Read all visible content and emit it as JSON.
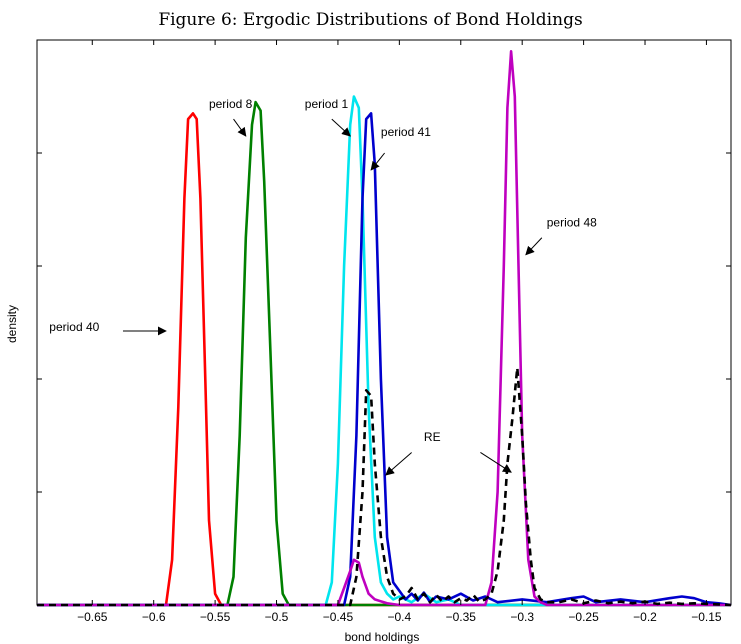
{
  "chart_data": {
    "type": "line",
    "title": "Figure 6: Ergodic Distributions of Bond Holdings",
    "xlabel": "bond holdings",
    "ylabel": "density",
    "xlim": [
      -0.695,
      -0.13
    ],
    "ylim": [
      0,
      1.0
    ],
    "xticks": [
      -0.65,
      -0.6,
      -0.55,
      -0.5,
      -0.45,
      -0.4,
      -0.35,
      -0.3,
      -0.25,
      -0.2,
      -0.15
    ],
    "xtick_labels": [
      "−0.65",
      "−0.6",
      "−0.55",
      "−0.5",
      "−0.45",
      "−0.4",
      "−0.35",
      "−0.3",
      "−0.25",
      "−0.2",
      "−0.15"
    ],
    "yticks": [
      0.2,
      0.4,
      0.6,
      0.8,
      1.0
    ],
    "ytick_labels_shown": false,
    "grid": false,
    "series": [
      {
        "name": "period 40",
        "color": "#ff0000",
        "dash": false,
        "x": [
          -0.695,
          -0.59,
          -0.585,
          -0.58,
          -0.575,
          -0.572,
          -0.568,
          -0.565,
          -0.562,
          -0.558,
          -0.555,
          -0.55,
          -0.545,
          -0.13
        ],
        "y": [
          0,
          0,
          0.08,
          0.35,
          0.72,
          0.86,
          0.87,
          0.86,
          0.72,
          0.4,
          0.15,
          0.02,
          0,
          0
        ]
      },
      {
        "name": "period 8",
        "color": "#008000",
        "dash": false,
        "x": [
          -0.695,
          -0.54,
          -0.535,
          -0.53,
          -0.525,
          -0.52,
          -0.517,
          -0.513,
          -0.51,
          -0.505,
          -0.5,
          -0.495,
          -0.49,
          -0.13
        ],
        "y": [
          0,
          0,
          0.05,
          0.3,
          0.65,
          0.85,
          0.89,
          0.875,
          0.75,
          0.45,
          0.15,
          0.02,
          0,
          0
        ]
      },
      {
        "name": "period 1",
        "color": "#00e5ee",
        "dash": false,
        "x": [
          -0.695,
          -0.46,
          -0.455,
          -0.45,
          -0.445,
          -0.44,
          -0.437,
          -0.433,
          -0.43,
          -0.425,
          -0.42,
          -0.415,
          -0.41,
          -0.405,
          -0.4,
          -0.39,
          -0.38,
          -0.37,
          -0.36,
          -0.35,
          -0.13
        ],
        "y": [
          0,
          0,
          0.04,
          0.25,
          0.6,
          0.85,
          0.9,
          0.88,
          0.72,
          0.35,
          0.12,
          0.04,
          0.02,
          0.01,
          0.015,
          0.005,
          0.02,
          0.005,
          0.01,
          0,
          0
        ]
      },
      {
        "name": "period 41",
        "color": "#0000cd",
        "dash": false,
        "x": [
          -0.695,
          -0.445,
          -0.44,
          -0.435,
          -0.43,
          -0.427,
          -0.423,
          -0.42,
          -0.415,
          -0.41,
          -0.405,
          -0.4,
          -0.395,
          -0.39,
          -0.385,
          -0.38,
          -0.375,
          -0.37,
          -0.36,
          -0.35,
          -0.34,
          -0.33,
          -0.32,
          -0.3,
          -0.28,
          -0.26,
          -0.25,
          -0.24,
          -0.22,
          -0.2,
          -0.18,
          -0.17,
          -0.16,
          -0.15,
          -0.14,
          -0.13
        ],
        "y": [
          0,
          0,
          0.05,
          0.3,
          0.72,
          0.86,
          0.87,
          0.78,
          0.4,
          0.12,
          0.04,
          0.025,
          0.01,
          0.02,
          0.008,
          0.022,
          0.005,
          0.015,
          0.01,
          0.02,
          0.008,
          0.015,
          0.005,
          0.01,
          0.005,
          0.012,
          0.015,
          0.005,
          0.01,
          0.005,
          0.012,
          0.015,
          0.012,
          0.005,
          0.003,
          0
        ]
      },
      {
        "name": "period 48",
        "color": "#bf00bf",
        "dash": false,
        "x": [
          -0.695,
          -0.45,
          -0.445,
          -0.44,
          -0.437,
          -0.433,
          -0.43,
          -0.425,
          -0.42,
          -0.41,
          -0.4,
          -0.33,
          -0.325,
          -0.32,
          -0.315,
          -0.312,
          -0.309,
          -0.306,
          -0.303,
          -0.3,
          -0.295,
          -0.29,
          -0.285,
          -0.28,
          -0.13
        ],
        "y": [
          0,
          0,
          0.03,
          0.06,
          0.08,
          0.075,
          0.05,
          0.02,
          0.01,
          0.003,
          0,
          0,
          0.04,
          0.2,
          0.6,
          0.88,
          0.98,
          0.9,
          0.6,
          0.3,
          0.08,
          0.015,
          0.005,
          0,
          0
        ]
      },
      {
        "name": "RE",
        "color": "#000000",
        "dash": true,
        "x": [
          -0.695,
          -0.44,
          -0.435,
          -0.43,
          -0.427,
          -0.423,
          -0.42,
          -0.415,
          -0.41,
          -0.405,
          -0.4,
          -0.395,
          -0.39,
          -0.385,
          -0.38,
          -0.375,
          -0.37,
          -0.365,
          -0.36,
          -0.355,
          -0.35,
          -0.345,
          -0.34,
          -0.335,
          -0.33,
          -0.325,
          -0.32,
          -0.315,
          -0.312,
          -0.308,
          -0.304,
          -0.3,
          -0.297,
          -0.293,
          -0.29,
          -0.285,
          -0.28,
          -0.27,
          -0.26,
          -0.25,
          -0.24,
          -0.23,
          -0.22,
          -0.21,
          -0.2,
          -0.19,
          -0.18,
          -0.17,
          -0.16,
          -0.15,
          -0.14,
          -0.13
        ],
        "y": [
          0,
          0,
          0.05,
          0.2,
          0.38,
          0.37,
          0.25,
          0.12,
          0.05,
          0.02,
          0.01,
          0.015,
          0.03,
          0.01,
          0.02,
          0.005,
          0.018,
          0.006,
          0.015,
          0.005,
          0.012,
          0.008,
          0.018,
          0.006,
          0.01,
          0.02,
          0.06,
          0.15,
          0.25,
          0.33,
          0.42,
          0.3,
          0.18,
          0.08,
          0.03,
          0.01,
          0.005,
          0.005,
          0.01,
          0.003,
          0.008,
          0.003,
          0.006,
          0.003,
          0.006,
          0.002,
          0.004,
          0.002,
          0.003,
          0.002,
          0.001,
          0
        ]
      }
    ],
    "annotations": [
      {
        "text": "period 40",
        "text_x": -0.685,
        "text_y": 0.485,
        "arrow_from": [
          -0.625,
          0.485
        ],
        "arrow_to": [
          -0.59,
          0.485
        ]
      },
      {
        "text": "period 8",
        "text_x": -0.555,
        "text_y": 0.88,
        "arrow_from": [
          -0.535,
          0.86
        ],
        "arrow_to": [
          -0.525,
          0.83
        ]
      },
      {
        "text": "period 1",
        "text_x": -0.477,
        "text_y": 0.88,
        "arrow_from": [
          -0.455,
          0.86
        ],
        "arrow_to": [
          -0.44,
          0.83
        ]
      },
      {
        "text": "period 41",
        "text_x": -0.415,
        "text_y": 0.83,
        "arrow_from": [
          -0.412,
          0.8
        ],
        "arrow_to": [
          -0.423,
          0.77
        ]
      },
      {
        "text": "period 48",
        "text_x": -0.28,
        "text_y": 0.67,
        "arrow_from": [
          -0.284,
          0.65
        ],
        "arrow_to": [
          -0.297,
          0.62
        ]
      },
      {
        "text": "RE",
        "text_x": -0.38,
        "text_y": 0.29,
        "arrow_from": [
          -0.39,
          0.27
        ],
        "arrow_to": [
          -0.411,
          0.23
        ],
        "arrow2_from": [
          -0.334,
          0.27
        ],
        "arrow2_to": [
          -0.309,
          0.235
        ]
      }
    ]
  }
}
